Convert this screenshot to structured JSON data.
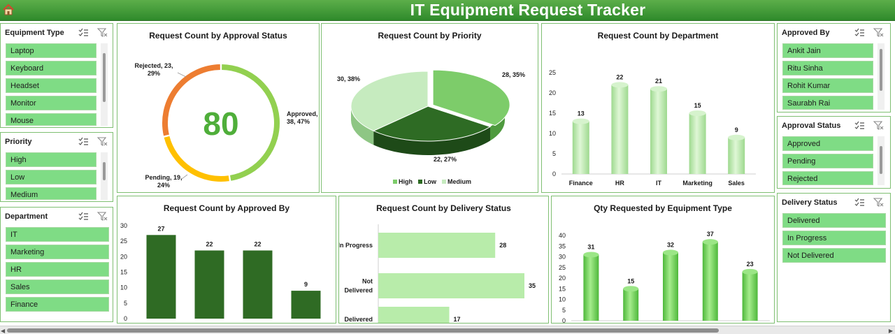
{
  "header": {
    "title": "IT Equipment Request Tracker",
    "home_icon": "home-icon"
  },
  "slicers": {
    "equipment_type": {
      "title": "Equipment Type",
      "items": [
        "Laptop",
        "Keyboard",
        "Headset",
        "Monitor",
        "Mouse"
      ]
    },
    "priority": {
      "title": "Priority",
      "items": [
        "High",
        "Low",
        "Medium"
      ]
    },
    "department": {
      "title": "Department",
      "items": [
        "IT",
        "Marketing",
        "HR",
        "Sales",
        "Finance"
      ]
    },
    "approved_by": {
      "title": "Approved By",
      "items": [
        "Ankit Jain",
        "Ritu Sinha",
        "Rohit Kumar",
        "Saurabh Rai"
      ]
    },
    "approval_status": {
      "title": "Approval Status",
      "items": [
        "Approved",
        "Pending",
        "Rejected"
      ]
    },
    "delivery_status": {
      "title": "Delivery Status",
      "items": [
        "Delivered",
        "In Progress",
        "Not Delivered"
      ]
    }
  },
  "colors": {
    "approved": "#92d050",
    "pending": "#ffc000",
    "rejected": "#ed7d31",
    "high": "#7dcc6a",
    "low": "#2e6b24",
    "medium": "#c6ebbf",
    "bar_light": "#b8ecaa",
    "bar_dark": "#2f6b24",
    "bar_green": "#70d25a"
  },
  "chart_data": [
    {
      "type": "pie",
      "title": "Request Count by Approval Status",
      "center_label": "80",
      "categories": [
        "Approved",
        "Pending",
        "Rejected"
      ],
      "values": [
        38,
        19,
        23
      ],
      "percents": [
        "47%",
        "24%",
        "29%"
      ],
      "labels": [
        "Approved, 38, 47%",
        "Pending, 19, 24%",
        "Rejected, 23, 29%"
      ]
    },
    {
      "type": "pie",
      "title": "Request Count by Priority",
      "categories": [
        "High",
        "Low",
        "Medium"
      ],
      "values": [
        28,
        22,
        30
      ],
      "percents": [
        "35%",
        "27%",
        "38%"
      ],
      "labels": [
        "28, 35%",
        "22, 27%",
        "30, 38%"
      ],
      "legend": [
        "High",
        "Low",
        "Medium"
      ]
    },
    {
      "type": "bar",
      "title": "Request Count by  Department",
      "categories": [
        "Finance",
        "HR",
        "IT",
        "Marketing",
        "Sales"
      ],
      "values": [
        13,
        22,
        21,
        15,
        9
      ],
      "ylim": [
        0,
        25
      ],
      "yticks": [
        "0",
        "5",
        "10",
        "15",
        "20",
        "25"
      ]
    },
    {
      "type": "bar",
      "title": "Request Count by Approved By",
      "values": [
        27,
        22,
        22,
        9
      ],
      "ylim": [
        0,
        30
      ],
      "yticks": [
        "0",
        "5",
        "10",
        "15",
        "20",
        "25",
        "30"
      ]
    },
    {
      "type": "bar",
      "title": "Request Count by Delivery Status",
      "orientation": "horizontal",
      "categories": [
        "In Progress",
        "Not Delivered",
        "Delivered"
      ],
      "category_lines": [
        [
          "In Progress"
        ],
        [
          "Not",
          "Delivered"
        ],
        [
          "Delivered"
        ]
      ],
      "values": [
        28,
        35,
        17
      ]
    },
    {
      "type": "bar",
      "title": "Qty Requested by Equipment Type",
      "values": [
        31,
        15,
        32,
        37,
        23
      ],
      "ylim": [
        0,
        40
      ],
      "yticks": [
        "0",
        "5",
        "10",
        "15",
        "20",
        "25",
        "30",
        "35",
        "40"
      ]
    }
  ]
}
